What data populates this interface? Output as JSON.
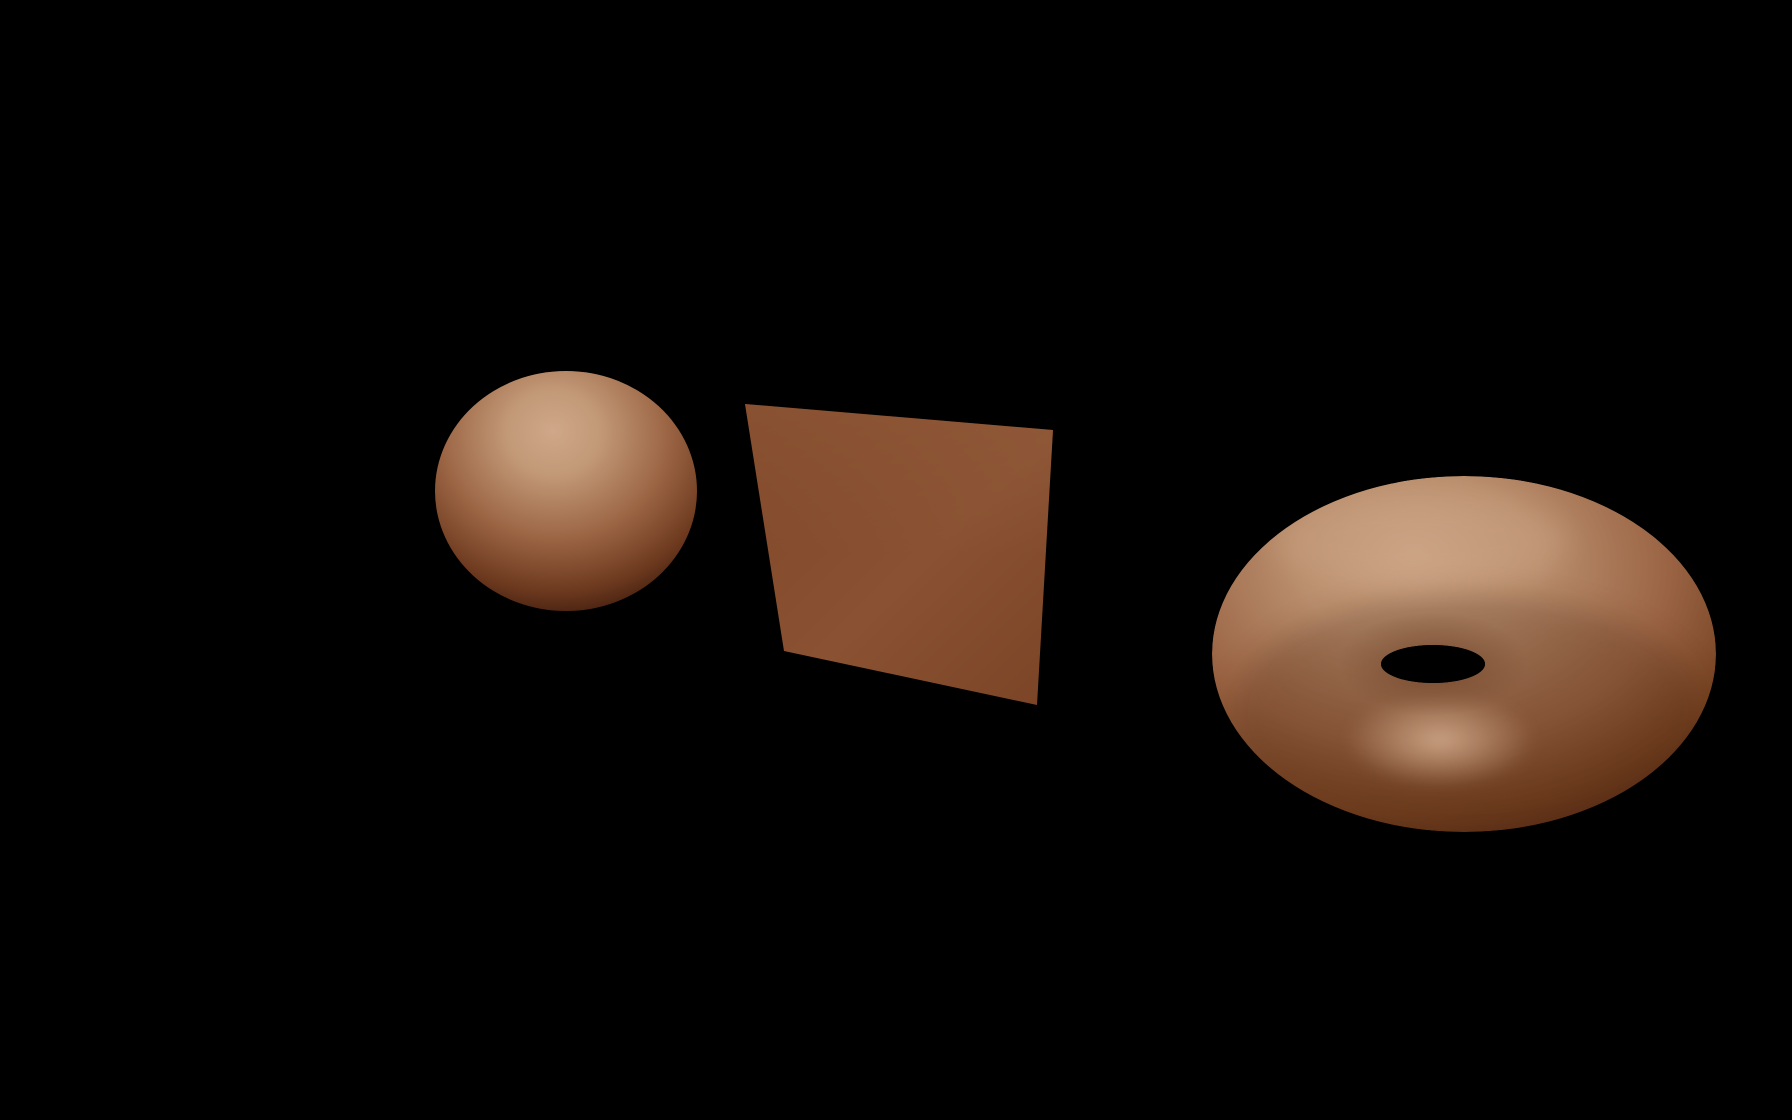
{
  "scene": {
    "background_color": "#000000",
    "material": {
      "name": "copper-tan",
      "base_color": "#8a5234",
      "highlight_color": "#cfa889",
      "shadow_color": "#3c1a0c"
    },
    "objects": [
      {
        "name": "sphere",
        "shape": "sphere"
      },
      {
        "name": "plane",
        "shape": "plane"
      },
      {
        "name": "torus",
        "shape": "torus"
      }
    ]
  }
}
